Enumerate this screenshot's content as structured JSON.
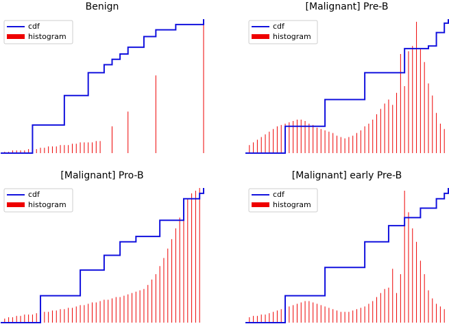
{
  "colors": {
    "cdf": "#1010dd",
    "histogram": "#ee0000",
    "legend_frame": "#cccccc"
  },
  "chart_data": [
    {
      "type": "line",
      "title": "Benign",
      "xlim": [
        0,
        255
      ],
      "ylim": [
        0,
        1
      ],
      "legend": {
        "placement": "top-left",
        "entries": [
          "cdf",
          "histogram"
        ]
      },
      "axis_visible": false,
      "series": [
        {
          "name": "cdf",
          "kind": "line",
          "x": [
            0,
            40,
            80,
            110,
            130,
            140,
            150,
            160,
            180,
            195,
            220,
            255
          ],
          "y": [
            0,
            0.21,
            0.43,
            0.6,
            0.66,
            0.7,
            0.74,
            0.79,
            0.87,
            0.92,
            0.96,
            1.0
          ]
        },
        {
          "name": "histogram",
          "kind": "bar",
          "x": [
            5,
            10,
            15,
            20,
            25,
            30,
            35,
            40,
            45,
            50,
            55,
            60,
            65,
            70,
            75,
            80,
            85,
            90,
            95,
            100,
            105,
            110,
            115,
            120,
            125,
            140,
            160,
            195,
            255
          ],
          "y": [
            0.01,
            0.01,
            0.02,
            0.02,
            0.02,
            0.02,
            0.03,
            0.03,
            0.03,
            0.04,
            0.04,
            0.05,
            0.05,
            0.05,
            0.06,
            0.06,
            0.06,
            0.07,
            0.07,
            0.08,
            0.08,
            0.08,
            0.08,
            0.09,
            0.09,
            0.2,
            0.31,
            0.58,
            1.0
          ]
        }
      ]
    },
    {
      "type": "line",
      "title": "[Malignant] Pre-B",
      "xlim": [
        0,
        255
      ],
      "ylim": [
        0,
        1
      ],
      "legend": {
        "placement": "top-left",
        "entries": [
          "cdf",
          "histogram"
        ]
      },
      "axis_visible": false,
      "series": [
        {
          "name": "cdf",
          "kind": "line",
          "x": [
            0,
            50,
            100,
            150,
            200,
            230,
            240,
            250,
            255
          ],
          "y": [
            0,
            0.2,
            0.4,
            0.6,
            0.78,
            0.8,
            0.9,
            0.97,
            1.0
          ]
        },
        {
          "name": "histogram",
          "kind": "bar",
          "x": [
            5,
            10,
            15,
            20,
            25,
            30,
            35,
            40,
            45,
            50,
            55,
            60,
            65,
            70,
            75,
            80,
            85,
            90,
            95,
            100,
            105,
            110,
            115,
            120,
            125,
            130,
            135,
            140,
            145,
            150,
            155,
            160,
            165,
            170,
            175,
            180,
            185,
            190,
            195,
            200,
            205,
            210,
            215,
            220,
            225,
            230,
            235,
            240,
            245,
            250
          ],
          "y": [
            0.06,
            0.08,
            0.1,
            0.12,
            0.14,
            0.16,
            0.18,
            0.2,
            0.21,
            0.22,
            0.23,
            0.24,
            0.25,
            0.25,
            0.24,
            0.22,
            0.21,
            0.19,
            0.18,
            0.17,
            0.16,
            0.15,
            0.13,
            0.12,
            0.11,
            0.12,
            0.13,
            0.15,
            0.17,
            0.2,
            0.22,
            0.25,
            0.29,
            0.33,
            0.37,
            0.4,
            0.36,
            0.45,
            0.74,
            0.5,
            0.76,
            0.8,
            0.98,
            0.78,
            0.68,
            0.52,
            0.43,
            0.3,
            0.22,
            0.18
          ]
        }
      ]
    },
    {
      "type": "line",
      "title": "[Malignant] Pro-B",
      "xlim": [
        0,
        255
      ],
      "ylim": [
        0,
        1
      ],
      "legend": {
        "placement": "top-left",
        "entries": [
          "cdf",
          "histogram"
        ]
      },
      "axis_visible": false,
      "series": [
        {
          "name": "cdf",
          "kind": "line",
          "x": [
            0,
            50,
            100,
            130,
            150,
            170,
            200,
            230,
            250,
            255
          ],
          "y": [
            0,
            0.2,
            0.39,
            0.5,
            0.6,
            0.64,
            0.76,
            0.92,
            0.96,
            1.0
          ]
        },
        {
          "name": "histogram",
          "kind": "bar",
          "x": [
            5,
            10,
            15,
            20,
            25,
            30,
            35,
            40,
            45,
            50,
            55,
            60,
            65,
            70,
            75,
            80,
            85,
            90,
            95,
            100,
            105,
            110,
            115,
            120,
            125,
            130,
            135,
            140,
            145,
            150,
            155,
            160,
            165,
            170,
            175,
            180,
            185,
            190,
            195,
            200,
            205,
            210,
            215,
            220,
            225,
            230,
            235,
            240,
            245,
            250
          ],
          "y": [
            0.03,
            0.04,
            0.04,
            0.05,
            0.05,
            0.06,
            0.06,
            0.06,
            0.07,
            0.07,
            0.08,
            0.08,
            0.09,
            0.09,
            0.1,
            0.1,
            0.11,
            0.11,
            0.12,
            0.13,
            0.13,
            0.14,
            0.15,
            0.15,
            0.16,
            0.17,
            0.17,
            0.18,
            0.19,
            0.19,
            0.2,
            0.21,
            0.22,
            0.23,
            0.24,
            0.25,
            0.28,
            0.32,
            0.36,
            0.42,
            0.48,
            0.55,
            0.62,
            0.7,
            0.78,
            0.86,
            0.92,
            0.96,
            0.98,
            1.0
          ]
        }
      ]
    },
    {
      "type": "line",
      "title": "[Malignant] early Pre-B",
      "xlim": [
        0,
        255
      ],
      "ylim": [
        0,
        1
      ],
      "legend": {
        "placement": "top-left",
        "entries": [
          "cdf",
          "histogram"
        ]
      },
      "axis_visible": false,
      "series": [
        {
          "name": "cdf",
          "kind": "line",
          "x": [
            0,
            50,
            100,
            150,
            180,
            200,
            220,
            240,
            250,
            255
          ],
          "y": [
            0,
            0.2,
            0.41,
            0.6,
            0.72,
            0.78,
            0.85,
            0.92,
            0.96,
            1.0
          ]
        },
        {
          "name": "histogram",
          "kind": "bar",
          "x": [
            5,
            10,
            15,
            20,
            25,
            30,
            35,
            40,
            45,
            50,
            55,
            60,
            65,
            70,
            75,
            80,
            85,
            90,
            95,
            100,
            105,
            110,
            115,
            120,
            125,
            130,
            135,
            140,
            145,
            150,
            155,
            160,
            165,
            170,
            175,
            180,
            185,
            190,
            195,
            200,
            205,
            210,
            215,
            220,
            225,
            230,
            235,
            240,
            245,
            250
          ],
          "y": [
            0.04,
            0.05,
            0.05,
            0.06,
            0.06,
            0.07,
            0.08,
            0.09,
            0.1,
            0.11,
            0.12,
            0.13,
            0.14,
            0.15,
            0.16,
            0.16,
            0.15,
            0.14,
            0.13,
            0.12,
            0.11,
            0.1,
            0.09,
            0.08,
            0.08,
            0.08,
            0.09,
            0.1,
            0.11,
            0.12,
            0.14,
            0.16,
            0.19,
            0.22,
            0.25,
            0.26,
            0.4,
            0.22,
            0.36,
            0.98,
            0.82,
            0.7,
            0.6,
            0.46,
            0.36,
            0.24,
            0.18,
            0.14,
            0.12,
            0.1
          ]
        }
      ]
    }
  ]
}
